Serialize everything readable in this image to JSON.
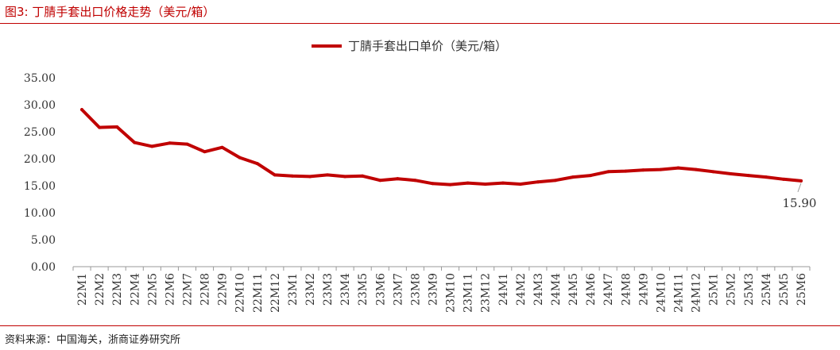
{
  "figure_title": "图3:   丁腈手套出口价格走势（美元/箱）",
  "source_note": "资料来源：中国海关，浙商证券研究所",
  "colors": {
    "accent": "#c00000",
    "series": "#c00000",
    "axis": "#999999",
    "text": "#333333"
  },
  "chart_data": {
    "type": "line",
    "title": "",
    "xlabel": "",
    "ylabel": "",
    "ylim": [
      0,
      35
    ],
    "yticks": [
      "0.00",
      "5.00",
      "10.00",
      "15.00",
      "20.00",
      "25.00",
      "30.00",
      "35.00"
    ],
    "grid": false,
    "legend_position": "top-center",
    "categories": [
      "22M1",
      "22M2",
      "22M3",
      "22M4",
      "22M5",
      "22M6",
      "22M7",
      "22M8",
      "22M9",
      "22M10",
      "22M11",
      "22M12",
      "23M1",
      "23M2",
      "23M3",
      "23M4",
      "23M5",
      "23M6",
      "23M7",
      "23M8",
      "23M9",
      "23M10",
      "23M11",
      "23M12",
      "24M1",
      "24M2",
      "24M3",
      "24M4",
      "24M5",
      "24M6",
      "24M7",
      "24M8",
      "24M9",
      "24M10",
      "24M11",
      "24M12",
      "25M1",
      "25M2",
      "25M3",
      "25M4",
      "25M5",
      "25M6"
    ],
    "series": [
      {
        "name": "丁腈手套出口单价（美元/箱）",
        "values": [
          29.1,
          25.8,
          25.9,
          23.0,
          22.3,
          22.9,
          22.7,
          21.3,
          22.1,
          20.2,
          19.1,
          17.0,
          16.8,
          16.7,
          17.0,
          16.7,
          16.8,
          16.0,
          16.3,
          16.0,
          15.4,
          15.2,
          15.5,
          15.3,
          15.5,
          15.3,
          15.7,
          16.0,
          16.6,
          16.9,
          17.6,
          17.7,
          17.9,
          18.0,
          18.3,
          18.0,
          17.6,
          17.2,
          16.9,
          16.6,
          16.2,
          15.9
        ]
      }
    ],
    "annotations": [
      {
        "category": "25M6",
        "text": "15.90"
      }
    ]
  }
}
